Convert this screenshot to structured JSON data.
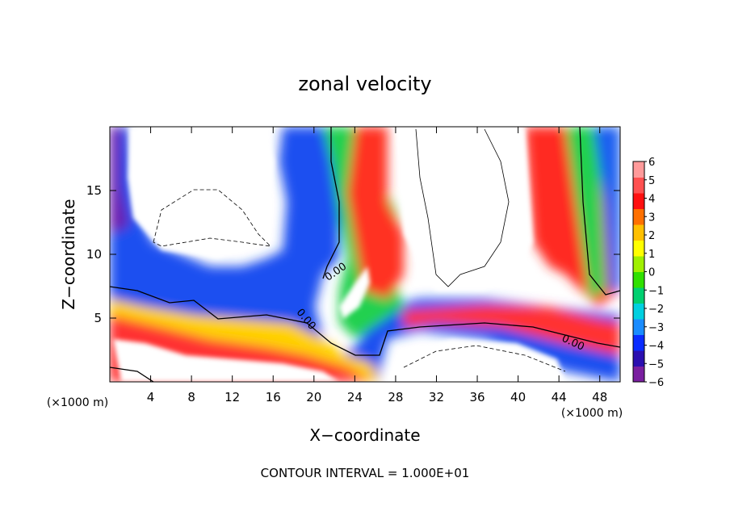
{
  "chart_data": {
    "type": "heatmap",
    "title": "zonal velocity",
    "xlabel": "X−coordinate",
    "ylabel": "Z−coordinate",
    "x_unit_left": "(×1000 m)",
    "x_unit_right": "(×1000 m)",
    "footer": "CONTOUR INTERVAL = 1.000E+01",
    "xlim": [
      0,
      50
    ],
    "ylim": [
      0,
      20
    ],
    "x_ticks": [
      4,
      8,
      12,
      16,
      20,
      24,
      28,
      32,
      36,
      40,
      44,
      48
    ],
    "y_ticks": [
      5,
      10,
      15
    ],
    "colorbar": {
      "ticks": [
        "6",
        "5",
        "4",
        "3",
        "2",
        "1",
        "0",
        "−1",
        "−2",
        "−3",
        "−4",
        "−5",
        "−6"
      ],
      "range": [
        -6,
        6
      ],
      "colors": [
        "#7a1fa0",
        "#2b0fb0",
        "#0a2cff",
        "#1a8cff",
        "#00d0e0",
        "#00d070",
        "#30e000",
        "#a0f000",
        "#ffff00",
        "#ffc000",
        "#ff7000",
        "#ff1010",
        "#ff5050",
        "#ff9a9a"
      ]
    },
    "contour_labels": [
      "0.00",
      "0.00",
      "0.00"
    ]
  }
}
